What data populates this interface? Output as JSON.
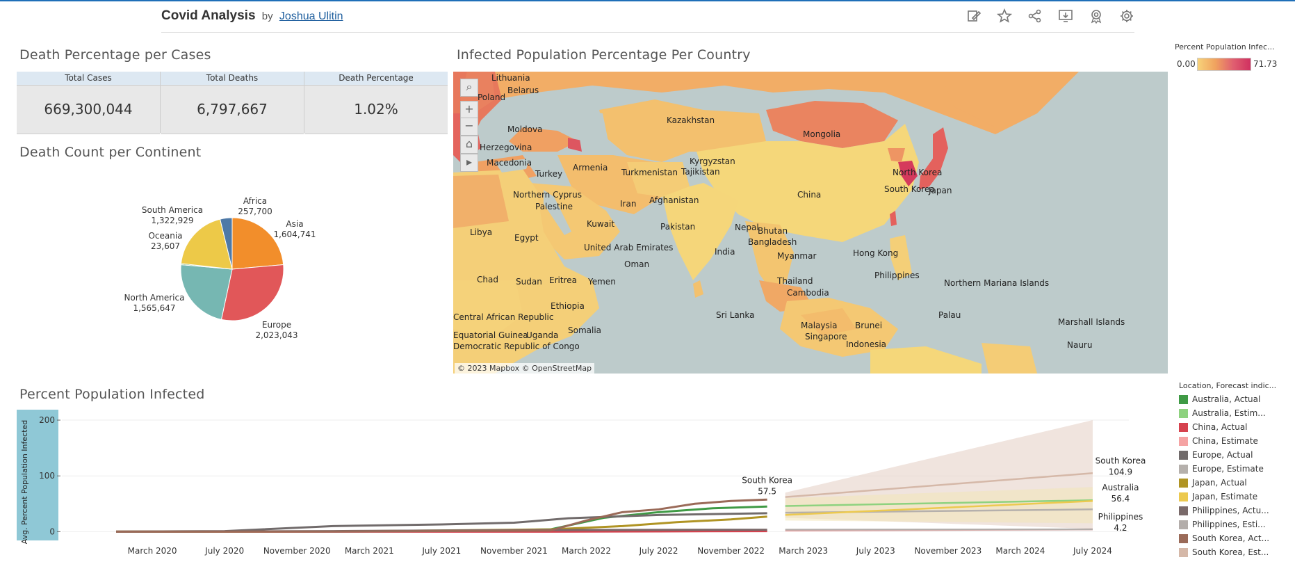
{
  "header": {
    "title": "Covid Analysis",
    "by": "by",
    "author": "Joshua Ulitin",
    "icons": [
      "edit-icon",
      "star-icon",
      "share-icon",
      "download-icon",
      "metrics-icon",
      "settings-icon"
    ]
  },
  "kpi": {
    "title": "Death Percentage per Cases",
    "columns": [
      {
        "header": "Total Cases",
        "value": "669,300,044"
      },
      {
        "header": "Total Deaths",
        "value": "6,797,667"
      },
      {
        "header": "Death Percentage",
        "value": "1.02%"
      }
    ]
  },
  "pie": {
    "title": "Death Count per Continent",
    "slices": [
      {
        "name": "Africa",
        "value": 257700,
        "label": "257,700",
        "color": "#4e79a7"
      },
      {
        "name": "Asia",
        "value": 1604741,
        "label": "1,604,741",
        "color": "#f28e2b"
      },
      {
        "name": "Europe",
        "value": 2023043,
        "label": "2,023,043",
        "color": "#e15759"
      },
      {
        "name": "North America",
        "value": 1565647,
        "label": "1,565,647",
        "color": "#76b7b2"
      },
      {
        "name": "Oceania",
        "value": 23607,
        "label": "23,607",
        "color": "#59a14f"
      },
      {
        "name": "South America",
        "value": 1322929,
        "label": "1,322,929",
        "color": "#edc948"
      }
    ]
  },
  "map": {
    "title": "Infected Population Percentage Per Country",
    "copyright": "© 2023 Mapbox  © OpenStreetMap",
    "labels": [
      "Lithuania",
      "Belarus",
      "Poland",
      "Kazakhstan",
      "Mongolia",
      "Moldova",
      "Herzegovina",
      "Macedonia",
      "Armenia",
      "Turkey",
      "Turkmenistan",
      "Kyrgyzstan",
      "Tajikistan",
      "North Korea",
      "South Korea",
      "Japan",
      "China",
      "Northern Cyprus",
      "Palestine",
      "Iran",
      "Afghanistan",
      "Libya",
      "Egypt",
      "Kuwait",
      "Pakistan",
      "Nepal",
      "Bhutan",
      "Bangladesh",
      "United Arab Emirates",
      "Oman",
      "India",
      "Myanmar",
      "Hong Kong",
      "Chad",
      "Sudan",
      "Eritrea",
      "Yemen",
      "Philippines",
      "Northern Mariana Islands",
      "Thailand",
      "Cambodia",
      "Sri Lanka",
      "Palau",
      "Marshall Islands",
      "Malaysia",
      "Brunei",
      "Singapore",
      "Ethiopia",
      "Central African Republic",
      "Somalia",
      "Uganda",
      "Equatorial Guinea",
      "Democratic Republic of Congo",
      "Indonesia",
      "Nauru"
    ]
  },
  "map_legend": {
    "title": "Percent Population Infec...",
    "min": "0.00",
    "max": "71.73"
  },
  "line_legend": {
    "title": "Location, Forecast indic...",
    "items": [
      {
        "label": "Australia, Actual",
        "color": "#3f9a45"
      },
      {
        "label": "Australia, Estim...",
        "color": "#8ed27f"
      },
      {
        "label": "China, Actual",
        "color": "#d6424e"
      },
      {
        "label": "China, Estimate",
        "color": "#f5a3a3"
      },
      {
        "label": "Europe, Actual",
        "color": "#716b6b"
      },
      {
        "label": "Europe, Estimate",
        "color": "#b5b0ac"
      },
      {
        "label": "Japan, Actual",
        "color": "#b09424"
      },
      {
        "label": "Japan, Estimate",
        "color": "#ecc94f"
      },
      {
        "label": "Philippines, Actu...",
        "color": "#7a6a6a"
      },
      {
        "label": "Philippines, Esti...",
        "color": "#b3adaa"
      },
      {
        "label": "South Korea, Act...",
        "color": "#9a6a58"
      },
      {
        "label": "South Korea, Est...",
        "color": "#d5b8a8"
      }
    ]
  },
  "chart_data": {
    "type": "line",
    "title": "Percent Population Infected",
    "ylabel": "Avg. Percent Population Infected",
    "xlabel": "",
    "ylim": [
      -12,
      215
    ],
    "yticks": [
      0,
      100,
      200
    ],
    "x_tick_labels": [
      "March 2020",
      "July 2020",
      "November 2020",
      "March 2021",
      "July 2021",
      "November 2021",
      "March 2022",
      "July 2022",
      "November 2022",
      "March 2023",
      "July 2023",
      "November 2023",
      "March 2024",
      "July 2024"
    ],
    "x_tick_months": [
      2,
      6,
      10,
      14,
      18,
      22,
      26,
      30,
      34,
      38,
      42,
      46,
      50,
      54
    ],
    "forecast_start_month": 37,
    "forecast_end_month": 54,
    "series": [
      {
        "name": "Australia",
        "kind": "actual",
        "color": "#3f9a45",
        "x": [
          0,
          6,
          12,
          18,
          24,
          27,
          30,
          33,
          36
        ],
        "y": [
          0,
          0.2,
          0.5,
          1,
          4,
          25,
          35,
          42,
          45
        ]
      },
      {
        "name": "Australia",
        "kind": "estimate",
        "color": "#8ed27f",
        "x": [
          37,
          54
        ],
        "y": [
          46,
          56.4
        ]
      },
      {
        "name": "China",
        "kind": "actual",
        "color": "#d6424e",
        "x": [
          0,
          12,
          24,
          30,
          36
        ],
        "y": [
          0,
          0,
          0,
          0.5,
          1
        ]
      },
      {
        "name": "China",
        "kind": "estimate",
        "color": "#f5a3a3",
        "x": [
          37,
          54
        ],
        "y": [
          2,
          4
        ]
      },
      {
        "name": "Europe",
        "kind": "actual",
        "color": "#716b6b",
        "x": [
          0,
          6,
          12,
          18,
          22,
          25,
          30,
          36
        ],
        "y": [
          0,
          1,
          10,
          13,
          16,
          24,
          30,
          33
        ]
      },
      {
        "name": "Europe",
        "kind": "estimate",
        "color": "#b5b0ac",
        "x": [
          37,
          54
        ],
        "y": [
          34,
          40
        ]
      },
      {
        "name": "Japan",
        "kind": "actual",
        "color": "#b09424",
        "x": [
          0,
          12,
          24,
          28,
          31,
          34,
          36
        ],
        "y": [
          0,
          0.5,
          4,
          10,
          17,
          22,
          27
        ]
      },
      {
        "name": "Japan",
        "kind": "estimate",
        "color": "#ecc94f",
        "x": [
          37,
          54
        ],
        "y": [
          30,
          55
        ]
      },
      {
        "name": "Philippines",
        "kind": "actual",
        "color": "#7a6a6a",
        "x": [
          0,
          12,
          24,
          36
        ],
        "y": [
          0,
          1,
          3,
          3.5
        ]
      },
      {
        "name": "Philippines",
        "kind": "estimate",
        "color": "#b3adaa",
        "x": [
          37,
          54
        ],
        "y": [
          3.6,
          4.2
        ]
      },
      {
        "name": "South Korea",
        "kind": "actual",
        "color": "#9a6a58",
        "x": [
          0,
          12,
          24,
          26,
          28,
          30,
          32,
          34,
          36
        ],
        "y": [
          0,
          0.2,
          2,
          20,
          35,
          40,
          50,
          55,
          57.5
        ]
      },
      {
        "name": "South Korea",
        "kind": "estimate",
        "color": "#d5b8a8",
        "x": [
          37,
          54
        ],
        "y": [
          62,
          104.9
        ]
      }
    ],
    "forecast_band": {
      "x": [
        37,
        54
      ],
      "upper": [
        70,
        200
      ],
      "lower": [
        25,
        5
      ]
    },
    "annotations": [
      {
        "text": "South Korea",
        "value": "57.5",
        "x": 36,
        "y": 57.5
      },
      {
        "text": "South Korea",
        "value": "104.9",
        "x": 54,
        "y": 104.9
      },
      {
        "text": "Australia",
        "value": "56.4",
        "x": 54,
        "y": 56.4
      },
      {
        "text": "Philippines",
        "value": "4.2",
        "x": 54,
        "y": 4.2
      }
    ]
  }
}
